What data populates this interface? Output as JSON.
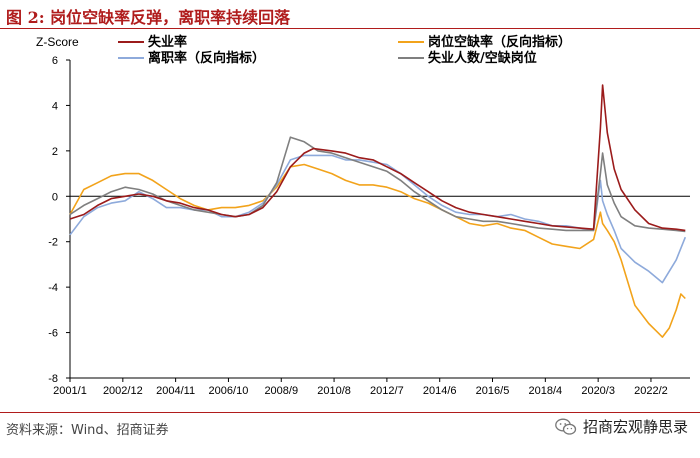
{
  "figure": {
    "title": "图 2:  岗位空缺率反弹，离职率持续回落",
    "source": "资料来源：Wind、招商证券",
    "brand": "招商宏观静思录",
    "brand_icon": "wechat-icon"
  },
  "chart_data": {
    "type": "line",
    "ylabel": "Z-Score",
    "ylim": [
      -8,
      6
    ],
    "yticks": [
      -8,
      -6,
      -4,
      -2,
      0,
      2,
      4,
      6
    ],
    "xlim": [
      2001.0,
      2023.5
    ],
    "xticks": [
      {
        "v": 2001.0,
        "label": "2001/1"
      },
      {
        "v": 2002.917,
        "label": "2002/12"
      },
      {
        "v": 2004.833,
        "label": "2004/11"
      },
      {
        "v": 2006.75,
        "label": "2006/10"
      },
      {
        "v": 2008.667,
        "label": "2008/9"
      },
      {
        "v": 2010.583,
        "label": "2010/8"
      },
      {
        "v": 2012.5,
        "label": "2012/7"
      },
      {
        "v": 2014.417,
        "label": "2014/6"
      },
      {
        "v": 2016.333,
        "label": "2016/5"
      },
      {
        "v": 2018.25,
        "label": "2018/4"
      },
      {
        "v": 2020.167,
        "label": "2020/3"
      },
      {
        "v": 2022.083,
        "label": "2022/2"
      }
    ],
    "zero_line": true,
    "grid": false,
    "legend_position": "top",
    "series": [
      {
        "name": "失业率",
        "color": "#9b1b1b",
        "x": [
          2001.0,
          2001.5,
          2002.0,
          2002.5,
          2003.0,
          2003.5,
          2004.0,
          2004.5,
          2005.0,
          2005.5,
          2006.0,
          2006.5,
          2007.0,
          2007.5,
          2008.0,
          2008.5,
          2009.0,
          2009.5,
          2009.83,
          2010.5,
          2011.0,
          2011.5,
          2012.0,
          2012.5,
          2013.0,
          2013.5,
          2014.0,
          2014.5,
          2015.0,
          2015.5,
          2016.0,
          2016.5,
          2017.0,
          2017.5,
          2018.0,
          2018.5,
          2019.0,
          2019.5,
          2020.0,
          2020.25,
          2020.33,
          2020.5,
          2020.75,
          2021.0,
          2021.5,
          2022.0,
          2022.5,
          2023.0,
          2023.33
        ],
        "y": [
          -1.0,
          -0.8,
          -0.4,
          -0.1,
          0.0,
          0.1,
          0.0,
          -0.2,
          -0.3,
          -0.5,
          -0.6,
          -0.8,
          -0.9,
          -0.8,
          -0.5,
          0.2,
          1.3,
          1.9,
          2.1,
          2.0,
          1.9,
          1.7,
          1.6,
          1.3,
          1.0,
          0.6,
          0.2,
          -0.2,
          -0.5,
          -0.7,
          -0.8,
          -0.9,
          -1.0,
          -1.1,
          -1.2,
          -1.3,
          -1.35,
          -1.4,
          -1.45,
          3.0,
          4.9,
          2.8,
          1.2,
          0.3,
          -0.6,
          -1.2,
          -1.4,
          -1.45,
          -1.5
        ]
      },
      {
        "name": "岗位空缺率（反向指标）",
        "color": "#f2a31b",
        "x": [
          2001.0,
          2001.5,
          2002.0,
          2002.5,
          2003.0,
          2003.5,
          2004.0,
          2004.5,
          2005.0,
          2005.5,
          2006.0,
          2006.5,
          2007.0,
          2007.5,
          2008.0,
          2008.5,
          2009.0,
          2009.5,
          2010.0,
          2010.5,
          2011.0,
          2011.5,
          2012.0,
          2012.5,
          2013.0,
          2013.5,
          2014.0,
          2014.5,
          2015.0,
          2015.5,
          2016.0,
          2016.5,
          2017.0,
          2017.5,
          2018.0,
          2018.5,
          2019.0,
          2019.5,
          2020.0,
          2020.25,
          2020.33,
          2020.5,
          2020.75,
          2021.0,
          2021.5,
          2022.0,
          2022.25,
          2022.5,
          2022.75,
          2023.0,
          2023.17,
          2023.33
        ],
        "y": [
          -0.8,
          0.3,
          0.6,
          0.9,
          1.0,
          1.0,
          0.7,
          0.3,
          -0.1,
          -0.4,
          -0.6,
          -0.5,
          -0.5,
          -0.4,
          -0.2,
          0.4,
          1.3,
          1.4,
          1.2,
          1.0,
          0.7,
          0.5,
          0.5,
          0.4,
          0.2,
          -0.1,
          -0.3,
          -0.6,
          -0.9,
          -1.2,
          -1.3,
          -1.2,
          -1.4,
          -1.5,
          -1.8,
          -2.1,
          -2.2,
          -2.3,
          -1.9,
          -0.7,
          -1.2,
          -1.5,
          -2.0,
          -2.8,
          -4.8,
          -5.6,
          -5.9,
          -6.2,
          -5.8,
          -5.0,
          -4.3,
          -4.5
        ]
      },
      {
        "name": "离职率（反向指标）",
        "color": "#8eaadb",
        "x": [
          2001.0,
          2001.5,
          2002.0,
          2002.5,
          2003.0,
          2003.5,
          2004.0,
          2004.5,
          2005.0,
          2005.5,
          2006.0,
          2006.5,
          2007.0,
          2007.5,
          2008.0,
          2008.5,
          2009.0,
          2009.5,
          2010.0,
          2010.5,
          2011.0,
          2011.5,
          2012.0,
          2012.5,
          2013.0,
          2013.5,
          2014.0,
          2014.5,
          2015.0,
          2015.5,
          2016.0,
          2016.5,
          2017.0,
          2017.5,
          2018.0,
          2018.5,
          2019.0,
          2019.5,
          2020.0,
          2020.25,
          2020.33,
          2020.5,
          2020.75,
          2021.0,
          2021.5,
          2022.0,
          2022.5,
          2023.0,
          2023.33
        ],
        "y": [
          -1.7,
          -0.9,
          -0.5,
          -0.3,
          -0.2,
          0.2,
          -0.1,
          -0.5,
          -0.5,
          -0.6,
          -0.6,
          -0.9,
          -0.9,
          -0.7,
          -0.3,
          0.5,
          1.6,
          1.8,
          1.8,
          1.8,
          1.6,
          1.6,
          1.5,
          1.4,
          1.0,
          0.5,
          0.0,
          -0.4,
          -0.7,
          -0.8,
          -0.8,
          -0.9,
          -0.8,
          -1.0,
          -1.1,
          -1.3,
          -1.3,
          -1.4,
          -1.5,
          0.7,
          -0.2,
          -0.8,
          -1.5,
          -2.3,
          -2.9,
          -3.3,
          -3.8,
          -2.8,
          -1.8
        ]
      },
      {
        "name": "失业人数/空缺岗位",
        "color": "#7f7f7f",
        "x": [
          2001.0,
          2001.5,
          2002.0,
          2002.5,
          2003.0,
          2003.5,
          2004.0,
          2004.5,
          2005.0,
          2005.5,
          2006.0,
          2006.5,
          2007.0,
          2007.5,
          2008.0,
          2008.5,
          2009.0,
          2009.5,
          2010.0,
          2010.5,
          2011.0,
          2011.5,
          2012.0,
          2012.5,
          2013.0,
          2013.5,
          2014.0,
          2014.5,
          2015.0,
          2015.5,
          2016.0,
          2016.5,
          2017.0,
          2017.5,
          2018.0,
          2018.5,
          2019.0,
          2019.5,
          2020.0,
          2020.25,
          2020.33,
          2020.5,
          2020.75,
          2021.0,
          2021.5,
          2022.0,
          2022.5,
          2023.0,
          2023.33
        ],
        "y": [
          -0.8,
          -0.4,
          -0.1,
          0.2,
          0.4,
          0.3,
          0.1,
          -0.2,
          -0.4,
          -0.6,
          -0.7,
          -0.8,
          -0.9,
          -0.8,
          -0.4,
          0.6,
          2.6,
          2.4,
          2.0,
          1.9,
          1.7,
          1.5,
          1.3,
          1.1,
          0.7,
          0.2,
          -0.2,
          -0.6,
          -0.9,
          -1.0,
          -1.1,
          -1.1,
          -1.2,
          -1.3,
          -1.4,
          -1.45,
          -1.5,
          -1.5,
          -1.5,
          1.0,
          1.9,
          0.5,
          -0.3,
          -0.9,
          -1.3,
          -1.4,
          -1.45,
          -1.5,
          -1.55
        ]
      }
    ]
  }
}
